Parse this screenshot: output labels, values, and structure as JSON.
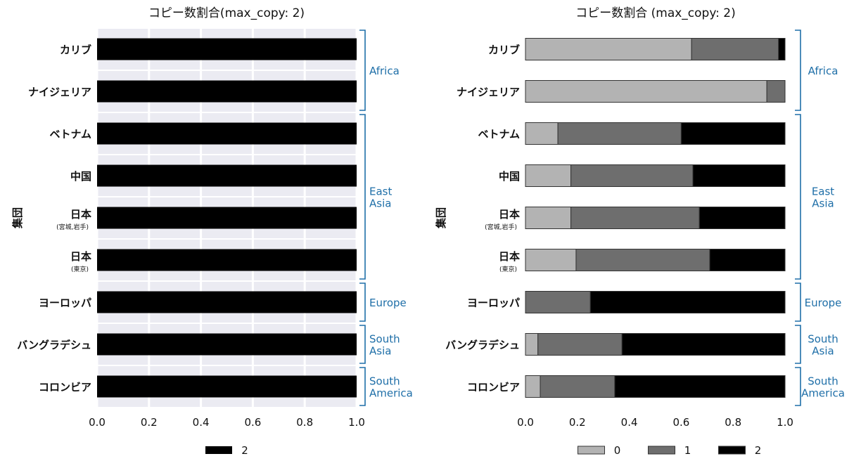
{
  "chart_data": [
    {
      "type": "bar",
      "orientation": "horizontal",
      "stacked": true,
      "title": "コピー数割合(max_copy: 2)",
      "ylabel": "集団",
      "xlim": [
        0,
        1
      ],
      "xticks": [
        "0.0",
        "0.2",
        "0.4",
        "0.6",
        "0.8",
        "1.0"
      ],
      "categories": [
        {
          "label": "カリブ",
          "sub": ""
        },
        {
          "label": "ナイジェリア",
          "sub": ""
        },
        {
          "label": "ベトナム",
          "sub": ""
        },
        {
          "label": "中国",
          "sub": ""
        },
        {
          "label": "日本",
          "sub": "(宮城,岩手)"
        },
        {
          "label": "日本",
          "sub": "(東京)"
        },
        {
          "label": "ヨーロッパ",
          "sub": ""
        },
        {
          "label": "バングラデシュ",
          "sub": ""
        },
        {
          "label": "コロンビア",
          "sub": ""
        }
      ],
      "series": [
        {
          "name": "2",
          "color": "#000000",
          "values": [
            1,
            1,
            1,
            1,
            1,
            1,
            1,
            1,
            1
          ]
        }
      ],
      "regions": [
        {
          "lines": [
            "Africa"
          ],
          "start": 0,
          "end": 1
        },
        {
          "lines": [
            "East",
            "Asia"
          ],
          "start": 2,
          "end": 5
        },
        {
          "lines": [
            "Europe"
          ],
          "start": 6,
          "end": 6
        },
        {
          "lines": [
            "South",
            "Asia"
          ],
          "start": 7,
          "end": 7
        },
        {
          "lines": [
            "South",
            "America"
          ],
          "start": 8,
          "end": 8
        }
      ],
      "grid": true,
      "legend_position": "bottom"
    },
    {
      "type": "bar",
      "orientation": "horizontal",
      "stacked": true,
      "title": "コピー数割合  (max_copy: 2)",
      "ylabel": "集団",
      "xlim": [
        0,
        1
      ],
      "xticks": [
        "0.0",
        "0.2",
        "0.4",
        "0.6",
        "0.8",
        "1.0"
      ],
      "categories": [
        {
          "label": "カリブ",
          "sub": ""
        },
        {
          "label": "ナイジェリア",
          "sub": ""
        },
        {
          "label": "ベトナム",
          "sub": ""
        },
        {
          "label": "中国",
          "sub": ""
        },
        {
          "label": "日本",
          "sub": "(宮城,岩手)"
        },
        {
          "label": "日本",
          "sub": "(東京)"
        },
        {
          "label": "ヨーロッパ",
          "sub": ""
        },
        {
          "label": "バングラデシュ",
          "sub": ""
        },
        {
          "label": "コロンビア",
          "sub": ""
        }
      ],
      "series": [
        {
          "name": "0",
          "color": "#b3b3b3",
          "values": [
            0.64,
            0.93,
            0.125,
            0.175,
            0.175,
            0.195,
            0.0,
            0.048,
            0.057
          ]
        },
        {
          "name": "1",
          "color": "#6e6e6e",
          "values": [
            0.335,
            0.07,
            0.475,
            0.47,
            0.495,
            0.515,
            0.25,
            0.324,
            0.287
          ]
        },
        {
          "name": "2",
          "color": "#000000",
          "values": [
            0.025,
            0.0,
            0.4,
            0.355,
            0.33,
            0.29,
            0.75,
            0.628,
            0.656
          ]
        }
      ],
      "regions": [
        {
          "lines": [
            "Africa"
          ],
          "start": 0,
          "end": 1
        },
        {
          "lines": [
            "East",
            "Asia"
          ],
          "start": 2,
          "end": 5
        },
        {
          "lines": [
            "Europe"
          ],
          "start": 6,
          "end": 6
        },
        {
          "lines": [
            "South",
            "Asia"
          ],
          "start": 7,
          "end": 7
        },
        {
          "lines": [
            "South",
            "America"
          ],
          "start": 8,
          "end": 8
        }
      ],
      "grid": false,
      "legend_position": "bottom"
    }
  ]
}
